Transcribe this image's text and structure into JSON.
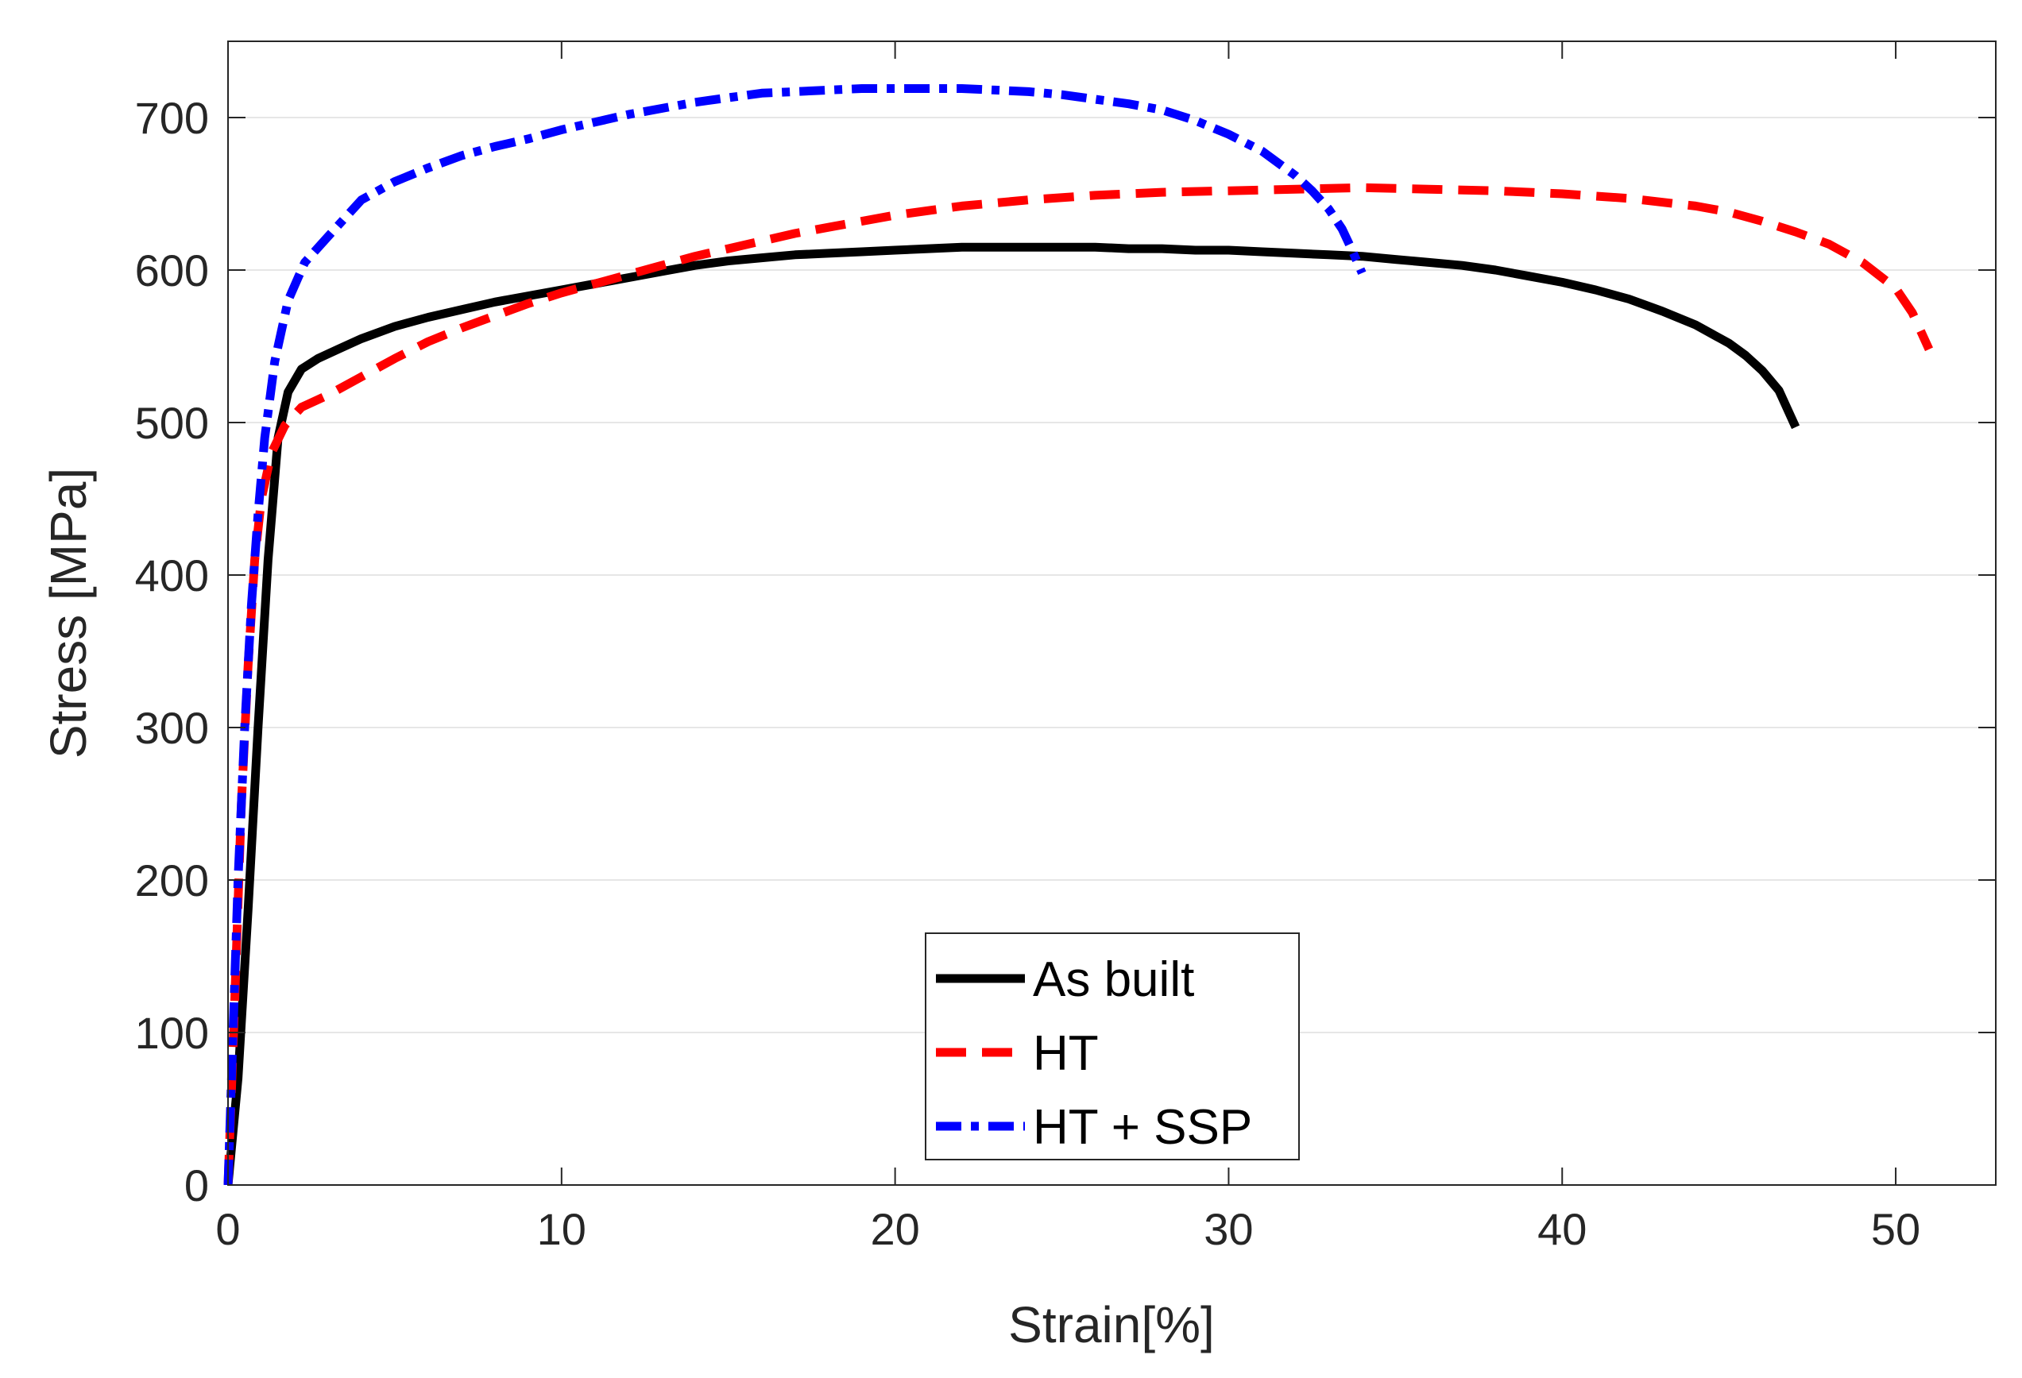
{
  "chart_data": {
    "type": "line",
    "title": "",
    "xlabel": "Strain[%]",
    "ylabel": "Stress [MPa]",
    "xlim": [
      0,
      53
    ],
    "ylim": [
      0,
      750
    ],
    "xticks": [
      0,
      10,
      20,
      30,
      40,
      50
    ],
    "yticks": [
      0,
      100,
      200,
      300,
      400,
      500,
      600,
      700
    ],
    "grid": "horizontal",
    "legend_position": "bottom-center",
    "series": [
      {
        "name": "As built",
        "color": "#000000",
        "style": "solid",
        "x": [
          0,
          0.3,
          0.6,
          0.9,
          1.2,
          1.5,
          1.8,
          2.2,
          2.7,
          3.3,
          4,
          5,
          6,
          7,
          8,
          9,
          10,
          11,
          12,
          13,
          14,
          15,
          16,
          17,
          18,
          19,
          20,
          21,
          22,
          23,
          24,
          25,
          26,
          27,
          28,
          29,
          30,
          31,
          32,
          33,
          34,
          35,
          36,
          37,
          38,
          39,
          40,
          41,
          42,
          43,
          44,
          45,
          45.5,
          46,
          46.5,
          47
        ],
        "values": [
          0,
          70,
          180,
          300,
          410,
          490,
          520,
          535,
          542,
          548,
          555,
          563,
          569,
          574,
          579,
          583,
          587,
          591,
          595,
          599,
          603,
          606,
          608,
          610,
          611,
          612,
          613,
          614,
          615,
          615,
          615,
          615,
          615,
          614,
          614,
          613,
          613,
          612,
          611,
          610,
          609,
          607,
          605,
          603,
          600,
          596,
          592,
          587,
          581,
          573,
          564,
          552,
          544,
          534,
          521,
          497
        ]
      },
      {
        "name": "HT",
        "color": "#ff0000",
        "style": "dashed",
        "x": [
          0,
          0.2,
          0.4,
          0.6,
          0.8,
          1,
          1.3,
          1.7,
          2.2,
          3,
          4,
          5,
          6,
          7,
          8,
          9,
          10,
          11,
          12,
          13,
          14,
          15,
          16,
          17,
          18,
          20,
          22,
          24,
          26,
          28,
          30,
          32,
          34,
          36,
          38,
          40,
          42,
          44,
          45,
          46,
          47,
          48,
          49,
          50,
          50.5,
          51
        ],
        "values": [
          0,
          120,
          250,
          340,
          410,
          450,
          480,
          498,
          510,
          518,
          530,
          542,
          553,
          562,
          570,
          578,
          585,
          591,
          597,
          603,
          609,
          614,
          619,
          624,
          628,
          636,
          642,
          646,
          649,
          651,
          652,
          653,
          654,
          653,
          652,
          650,
          647,
          642,
          638,
          632,
          625,
          617,
          605,
          588,
          572,
          548
        ]
      },
      {
        "name": "HT + SSP",
        "color": "#0000ff",
        "style": "dashdot",
        "x": [
          0,
          0.15,
          0.3,
          0.5,
          0.7,
          0.9,
          1.1,
          1.4,
          1.8,
          2.3,
          3,
          4,
          5,
          6,
          7,
          8,
          9,
          10,
          11,
          12,
          13,
          14,
          15,
          16,
          17,
          18,
          19,
          20,
          21,
          22,
          23,
          24,
          25,
          26,
          27,
          28,
          29,
          30,
          31,
          32,
          32.5,
          33,
          33.4,
          33.7,
          34
        ],
        "values": [
          0,
          100,
          200,
          300,
          380,
          440,
          490,
          540,
          580,
          605,
          622,
          646,
          658,
          667,
          675,
          681,
          686,
          692,
          697,
          702,
          706,
          710,
          713,
          716,
          717,
          718,
          719,
          719,
          719,
          719,
          718,
          717,
          715,
          712,
          709,
          705,
          698,
          689,
          678,
          662,
          652,
          640,
          627,
          613,
          598
        ]
      }
    ]
  }
}
